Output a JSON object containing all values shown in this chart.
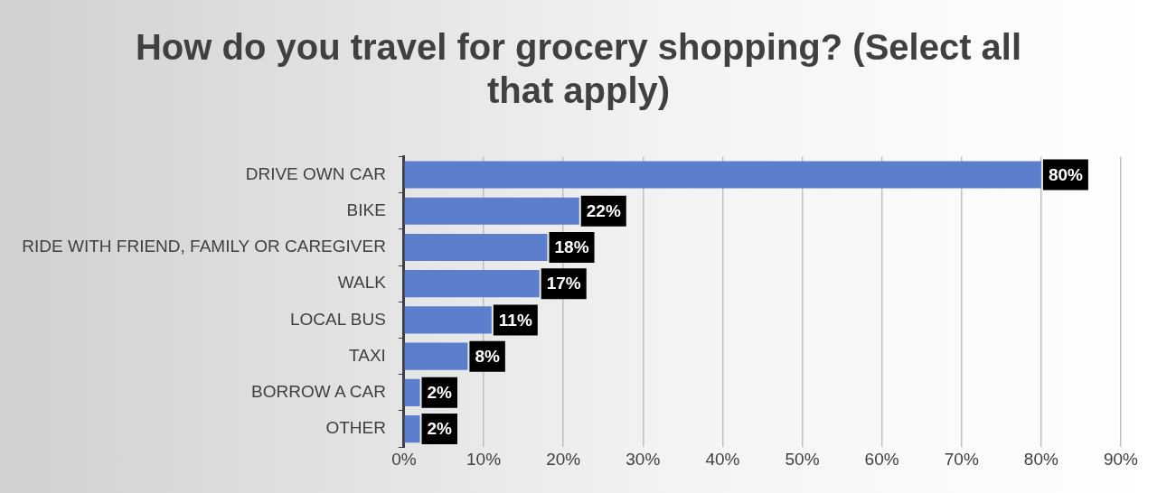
{
  "chart_data": {
    "type": "bar",
    "orientation": "horizontal",
    "title": "How do you travel for grocery shopping? (Select all that apply)",
    "categories": [
      "DRIVE OWN CAR",
      "BIKE",
      "RIDE WITH FRIEND, FAMILY OR CAREGIVER",
      "WALK",
      "LOCAL BUS",
      "TAXI",
      "BORROW A CAR",
      "OTHER"
    ],
    "values": [
      80,
      22,
      18,
      17,
      11,
      8,
      2,
      2
    ],
    "value_labels": [
      "80%",
      "22%",
      "18%",
      "17%",
      "11%",
      "8%",
      "2%",
      "2%"
    ],
    "color": "#5b7fcc",
    "xlim": [
      0,
      90
    ],
    "xticks": [
      {
        "value": 0,
        "label": "0%"
      },
      {
        "value": 10,
        "label": "10%"
      },
      {
        "value": 20,
        "label": "20%"
      },
      {
        "value": 30,
        "label": "30%"
      },
      {
        "value": 40,
        "label": "40%"
      },
      {
        "value": 50,
        "label": "50%"
      },
      {
        "value": 60,
        "label": "60%"
      },
      {
        "value": 70,
        "label": "70%"
      },
      {
        "value": 80,
        "label": "80%"
      },
      {
        "value": 90,
        "label": "90%"
      }
    ],
    "grid": "x",
    "legend": false
  }
}
